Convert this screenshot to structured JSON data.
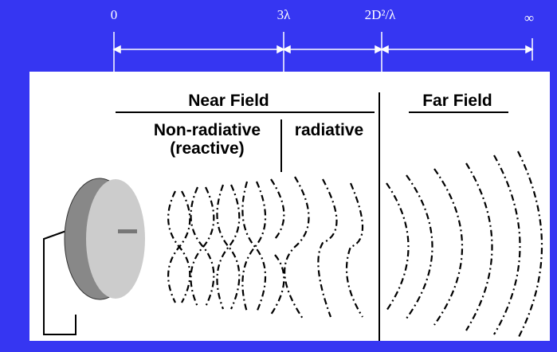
{
  "axis": {
    "labels": [
      "0",
      "3λ",
      "2D²/λ",
      "∞"
    ]
  },
  "near_field": {
    "title": "Near Field",
    "non_radiative": [
      "Non-radiative",
      "(reactive)"
    ],
    "radiative": "radiative"
  },
  "far_field": {
    "title": "Far Field"
  }
}
